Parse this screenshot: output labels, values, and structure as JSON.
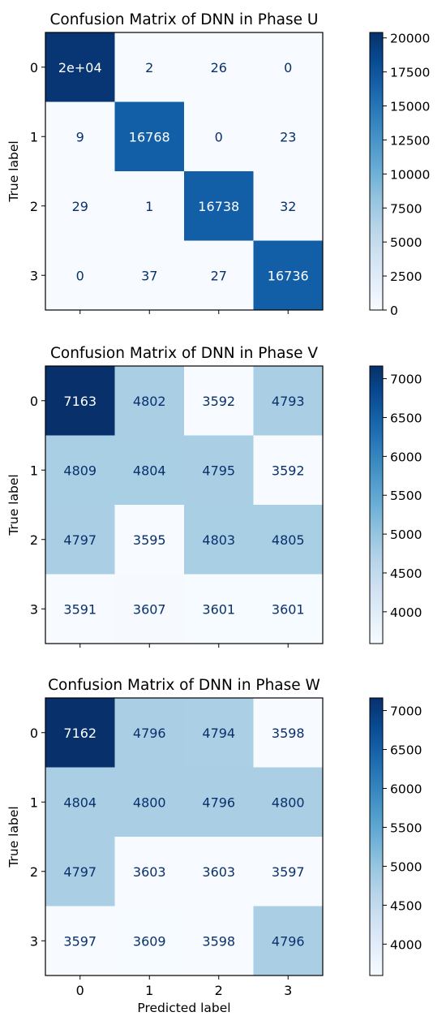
{
  "chart_data": [
    {
      "type": "heatmap",
      "title": "Confusion Matrix of DNN in Phase U",
      "ylabel": "True label",
      "xlabel": "",
      "row_labels": [
        "0",
        "1",
        "2",
        "3"
      ],
      "col_labels": [
        "0",
        "1",
        "2",
        "3"
      ],
      "values": [
        [
          20000,
          2,
          26,
          0
        ],
        [
          9,
          16768,
          0,
          23
        ],
        [
          29,
          1,
          16738,
          32
        ],
        [
          0,
          37,
          27,
          16736
        ]
      ],
      "cell_text": [
        [
          "2e+04",
          "2",
          "26",
          "0"
        ],
        [
          "9",
          "16768",
          "0",
          "23"
        ],
        [
          "29",
          "1",
          "16738",
          "32"
        ],
        [
          "0",
          "37",
          "27",
          "16736"
        ]
      ],
      "show_x_tick_labels": false,
      "colorbar": {
        "min": 0,
        "max": 20400,
        "ticks": [
          0,
          2500,
          5000,
          7500,
          10000,
          12500,
          15000,
          17500,
          20000
        ],
        "tick_labels": [
          "0",
          "2500",
          "5000",
          "7500",
          "10000",
          "12500",
          "15000",
          "17500",
          "20000"
        ]
      }
    },
    {
      "type": "heatmap",
      "title": "Confusion Matrix of DNN in Phase V",
      "ylabel": "True label",
      "xlabel": "",
      "row_labels": [
        "0",
        "1",
        "2",
        "3"
      ],
      "col_labels": [
        "0",
        "1",
        "2",
        "3"
      ],
      "values": [
        [
          7163,
          4802,
          3592,
          4793
        ],
        [
          4809,
          4804,
          4795,
          3592
        ],
        [
          4797,
          3595,
          4803,
          4805
        ],
        [
          3591,
          3607,
          3601,
          3601
        ]
      ],
      "cell_text": [
        [
          "7163",
          "4802",
          "3592",
          "4793"
        ],
        [
          "4809",
          "4804",
          "4795",
          "3592"
        ],
        [
          "4797",
          "3595",
          "4803",
          "4805"
        ],
        [
          "3591",
          "3607",
          "3601",
          "3601"
        ]
      ],
      "show_x_tick_labels": false,
      "colorbar": {
        "min": 3591,
        "max": 7163,
        "ticks": [
          4000,
          4500,
          5000,
          5500,
          6000,
          6500,
          7000
        ],
        "tick_labels": [
          "4000",
          "4500",
          "5000",
          "5500",
          "6000",
          "6500",
          "7000"
        ]
      }
    },
    {
      "type": "heatmap",
      "title": "Confusion Matrix of DNN in Phase W",
      "ylabel": "True label",
      "xlabel": "Predicted label",
      "row_labels": [
        "0",
        "1",
        "2",
        "3"
      ],
      "col_labels": [
        "0",
        "1",
        "2",
        "3"
      ],
      "values": [
        [
          7162,
          4796,
          4794,
          3598
        ],
        [
          4804,
          4800,
          4796,
          4800
        ],
        [
          4797,
          3603,
          3603,
          3597
        ],
        [
          3597,
          3609,
          3598,
          4796
        ]
      ],
      "cell_text": [
        [
          "7162",
          "4796",
          "4794",
          "3598"
        ],
        [
          "4804",
          "4800",
          "4796",
          "4800"
        ],
        [
          "4797",
          "3603",
          "3603",
          "3597"
        ],
        [
          "3597",
          "3609",
          "3598",
          "4796"
        ]
      ],
      "show_x_tick_labels": true,
      "colorbar": {
        "min": 3597,
        "max": 7162,
        "ticks": [
          4000,
          4500,
          5000,
          5500,
          6000,
          6500,
          7000
        ],
        "tick_labels": [
          "4000",
          "4500",
          "5000",
          "5500",
          "6000",
          "6500",
          "7000"
        ]
      }
    }
  ]
}
